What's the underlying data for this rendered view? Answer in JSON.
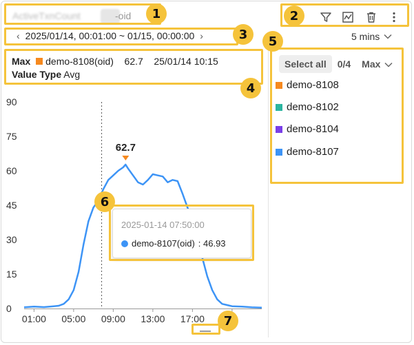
{
  "widget": {
    "title_blurred": "ActiveTxnCount",
    "title_suffix": "-oid"
  },
  "toolbar": {
    "icons": [
      "filter-icon",
      "chart-type-icon",
      "delete-icon",
      "more-icon"
    ]
  },
  "time_range": {
    "prev_label": "‹",
    "label": "2025/01/14, 00:01:00 ~ 01/15, 00:00:00",
    "next_label": "›"
  },
  "interval": {
    "label": "5 mins"
  },
  "summary": {
    "stat_label": "Max",
    "series_name": "demo-8108(oid)",
    "value": "62.7",
    "time": "25/01/14 10:15",
    "value_type_label": "Value Type",
    "value_type": "Avg"
  },
  "legend": {
    "select_all_label": "Select all",
    "count_label": "0/4",
    "sort_label": "Max",
    "items": [
      {
        "name": "demo-8108",
        "color": "#f6891f"
      },
      {
        "name": "demo-8102",
        "color": "#2bb5a0"
      },
      {
        "name": "demo-8104",
        "color": "#7a3fe8"
      },
      {
        "name": "demo-8107",
        "color": "#3d94f6"
      }
    ]
  },
  "tooltip": {
    "time": "2025-01-14 07:50:00",
    "series_label": "demo-8107(oid)",
    "value_text": ": 46.93"
  },
  "badges": [
    "1",
    "2",
    "3",
    "4",
    "5",
    "6",
    "7"
  ],
  "chart_data": {
    "type": "line",
    "title": "",
    "xlabel": "",
    "ylabel": "",
    "ylim": [
      0,
      90
    ],
    "yticks": [
      0,
      15,
      30,
      45,
      60,
      75,
      90
    ],
    "xlim": [
      0,
      24
    ],
    "xticks": [
      {
        "value": 1,
        "label": "01:00"
      },
      {
        "value": 5,
        "label": "05:00"
      },
      {
        "value": 9,
        "label": "09:00"
      },
      {
        "value": 13,
        "label": "13:00"
      },
      {
        "value": 17,
        "label": "17:00"
      },
      {
        "value": 21,
        "label": "0"
      }
    ],
    "cursor_x": 7.83,
    "peak": {
      "x": 10.25,
      "y": 62.7,
      "label": "62.7"
    },
    "series": [
      {
        "name": "demo-8107",
        "color": "#3d94f6",
        "x": [
          0,
          1,
          2,
          3,
          3.5,
          4,
          4.5,
          5,
          5.5,
          6,
          6.5,
          7,
          7.5,
          8,
          8.5,
          9,
          9.5,
          10,
          10.25,
          10.5,
          11,
          11.5,
          12,
          12.5,
          13,
          13.5,
          14,
          14.5,
          15,
          15.5,
          16,
          16.5,
          17,
          17.5,
          18,
          18.5,
          19,
          19.5,
          20,
          20.5,
          21,
          22,
          23,
          24
        ],
        "y": [
          0.5,
          0.8,
          0.6,
          1.0,
          1.2,
          2.0,
          4.0,
          8.0,
          16.0,
          28.0,
          38.0,
          44.0,
          47.0,
          52.0,
          56.0,
          58.0,
          60.0,
          61.5,
          62.7,
          61.0,
          58.0,
          55.0,
          54.0,
          56.0,
          58.5,
          58.0,
          57.5,
          55.0,
          56.0,
          55.5,
          50.0,
          44.0,
          38.0,
          30.0,
          22.0,
          14.0,
          8.0,
          4.0,
          2.0,
          1.5,
          1.0,
          0.8,
          0.5,
          0.4
        ]
      }
    ],
    "grid": false,
    "legend_position": "right"
  }
}
